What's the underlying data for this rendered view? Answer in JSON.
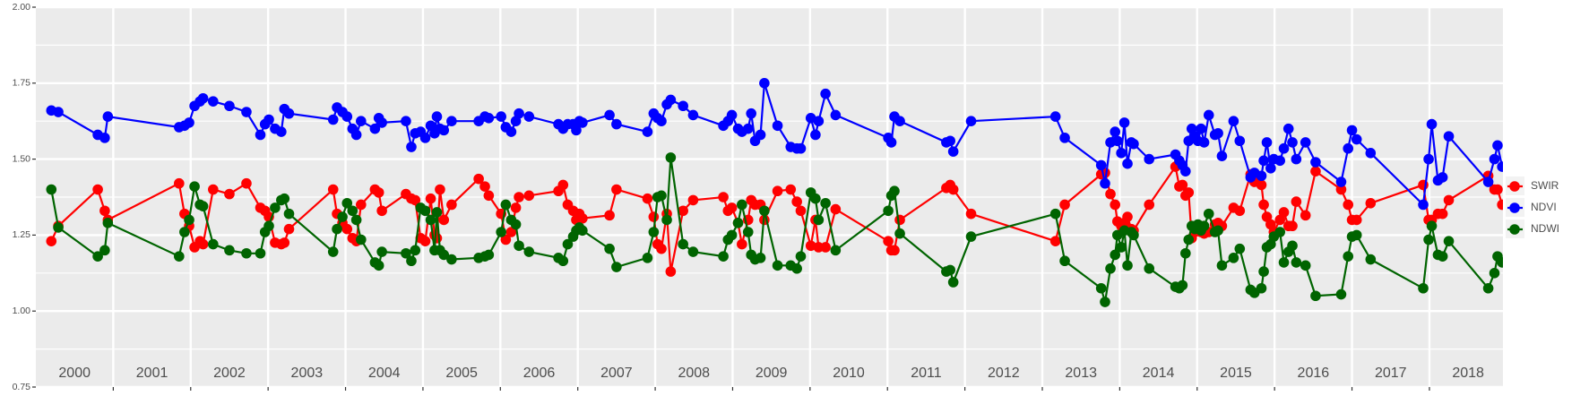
{
  "chart_data": {
    "type": "line",
    "x": [
      2000.2,
      2000.29,
      2000.8,
      2000.89,
      2000.93,
      2001.85,
      2001.92,
      2001.98,
      2002.05,
      2002.12,
      2002.16,
      2002.29,
      2002.5,
      2002.72,
      2002.9,
      2002.96,
      2003.01,
      2003.09,
      2003.17,
      2003.21,
      2003.27,
      2003.84,
      2003.89,
      2003.96,
      2004.02,
      2004.09,
      2004.14,
      2004.2,
      2004.38,
      2004.43,
      2004.47,
      2004.78,
      2004.85,
      2004.9,
      2004.97,
      2005.03,
      2005.1,
      2005.15,
      2005.18,
      2005.22,
      2005.27,
      2005.37,
      2005.72,
      2005.8,
      2005.85,
      2006.01,
      2006.07,
      2006.14,
      2006.2,
      2006.24,
      2006.37,
      2006.75,
      2006.81,
      2006.87,
      2006.94,
      2006.98,
      2007.02,
      2007.06,
      2007.41,
      2007.5,
      2007.9,
      2007.98,
      2008.03,
      2008.08,
      2008.15,
      2008.2,
      2008.36,
      2008.49,
      2008.88,
      2008.94,
      2008.99,
      2009.07,
      2009.12,
      2009.2,
      2009.24,
      2009.29,
      2009.36,
      2009.41,
      2009.58,
      2009.75,
      2009.83,
      2009.88,
      2010.01,
      2010.07,
      2010.11,
      2010.2,
      2010.33,
      2011.01,
      2011.05,
      2011.09,
      2011.16,
      2011.76,
      2011.81,
      2011.85,
      2012.08,
      2013.17,
      2013.29,
      2013.76,
      2013.81,
      2013.88,
      2013.94,
      2013.97,
      2014.02,
      2014.06,
      2014.1,
      2014.15,
      2014.18,
      2014.38,
      2014.72,
      2014.77,
      2014.81,
      2014.85,
      2014.89,
      2014.93,
      2014.97,
      2015.01,
      2015.05,
      2015.09,
      2015.15,
      2015.23,
      2015.27,
      2015.32,
      2015.47,
      2015.55,
      2015.69,
      2015.74,
      2015.83,
      2015.86,
      2015.9,
      2015.95,
      2015.99,
      2016.07,
      2016.12,
      2016.18,
      2016.23,
      2016.28,
      2016.4,
      2016.53,
      2016.86,
      2016.95,
      2017.0,
      2017.06,
      2017.24,
      2017.92,
      2017.99,
      2018.03,
      2018.11,
      2018.17,
      2018.25,
      2018.76,
      2018.84,
      2018.88,
      2018.94
    ],
    "series": [
      {
        "name": "SWIR",
        "color": "#ff0000",
        "values": [
          1.23,
          1.28,
          1.4,
          1.33,
          1.3,
          1.42,
          1.32,
          1.28,
          1.21,
          1.23,
          1.22,
          1.4,
          1.385,
          1.42,
          1.34,
          1.33,
          1.31,
          1.225,
          1.22,
          1.225,
          1.27,
          1.4,
          1.32,
          1.29,
          1.27,
          1.24,
          1.23,
          1.35,
          1.4,
          1.39,
          1.33,
          1.385,
          1.37,
          1.365,
          1.24,
          1.23,
          1.37,
          1.25,
          1.24,
          1.4,
          1.3,
          1.35,
          1.435,
          1.41,
          1.38,
          1.32,
          1.235,
          1.26,
          1.34,
          1.375,
          1.38,
          1.395,
          1.415,
          1.35,
          1.33,
          1.3,
          1.32,
          1.305,
          1.315,
          1.4,
          1.37,
          1.31,
          1.22,
          1.205,
          1.32,
          1.13,
          1.33,
          1.365,
          1.375,
          1.33,
          1.34,
          1.29,
          1.22,
          1.3,
          1.365,
          1.35,
          1.35,
          1.3,
          1.395,
          1.4,
          1.36,
          1.33,
          1.215,
          1.3,
          1.21,
          1.21,
          1.335,
          1.23,
          1.2,
          1.2,
          1.3,
          1.405,
          1.415,
          1.4,
          1.32,
          1.23,
          1.35,
          1.45,
          1.455,
          1.385,
          1.35,
          1.295,
          1.28,
          1.29,
          1.31,
          1.27,
          1.265,
          1.35,
          1.475,
          1.41,
          1.415,
          1.38,
          1.39,
          1.24,
          1.26,
          1.27,
          1.26,
          1.255,
          1.26,
          1.285,
          1.29,
          1.28,
          1.34,
          1.33,
          1.45,
          1.425,
          1.415,
          1.35,
          1.31,
          1.285,
          1.26,
          1.3,
          1.325,
          1.28,
          1.28,
          1.36,
          1.315,
          1.46,
          1.4,
          1.35,
          1.3,
          1.3,
          1.355,
          1.415,
          1.3,
          1.3,
          1.32,
          1.32,
          1.365,
          1.445,
          1.4,
          1.4,
          1.35
        ]
      },
      {
        "name": "NDVI",
        "color": "#0000ff",
        "values": [
          1.66,
          1.655,
          1.58,
          1.57,
          1.64,
          1.605,
          1.61,
          1.62,
          1.675,
          1.69,
          1.7,
          1.69,
          1.675,
          1.655,
          1.58,
          1.615,
          1.63,
          1.6,
          1.59,
          1.665,
          1.65,
          1.63,
          1.67,
          1.655,
          1.64,
          1.6,
          1.58,
          1.625,
          1.6,
          1.635,
          1.62,
          1.625,
          1.54,
          1.585,
          1.59,
          1.57,
          1.61,
          1.585,
          1.64,
          1.6,
          1.595,
          1.625,
          1.625,
          1.64,
          1.635,
          1.64,
          1.605,
          1.59,
          1.625,
          1.65,
          1.64,
          1.615,
          1.6,
          1.615,
          1.615,
          1.595,
          1.625,
          1.62,
          1.645,
          1.615,
          1.59,
          1.65,
          1.635,
          1.625,
          1.68,
          1.695,
          1.675,
          1.645,
          1.61,
          1.625,
          1.645,
          1.6,
          1.59,
          1.6,
          1.65,
          1.56,
          1.58,
          1.75,
          1.61,
          1.54,
          1.535,
          1.535,
          1.635,
          1.58,
          1.625,
          1.715,
          1.645,
          1.57,
          1.555,
          1.64,
          1.625,
          1.555,
          1.56,
          1.525,
          1.625,
          1.64,
          1.57,
          1.48,
          1.42,
          1.555,
          1.59,
          1.56,
          1.52,
          1.62,
          1.485,
          1.555,
          1.55,
          1.5,
          1.515,
          1.495,
          1.48,
          1.46,
          1.56,
          1.6,
          1.575,
          1.56,
          1.6,
          1.555,
          1.645,
          1.58,
          1.585,
          1.51,
          1.625,
          1.56,
          1.44,
          1.455,
          1.445,
          1.495,
          1.555,
          1.47,
          1.5,
          1.495,
          1.535,
          1.6,
          1.555,
          1.5,
          1.555,
          1.49,
          1.425,
          1.535,
          1.595,
          1.565,
          1.52,
          1.35,
          1.5,
          1.615,
          1.43,
          1.44,
          1.575,
          1.425,
          1.5,
          1.545,
          1.475
        ]
      },
      {
        "name": "NDWI",
        "color": "#006400",
        "values": [
          1.4,
          1.275,
          1.18,
          1.2,
          1.29,
          1.18,
          1.26,
          1.3,
          1.41,
          1.35,
          1.345,
          1.22,
          1.2,
          1.19,
          1.19,
          1.26,
          1.28,
          1.34,
          1.365,
          1.37,
          1.32,
          1.195,
          1.27,
          1.31,
          1.355,
          1.33,
          1.3,
          1.235,
          1.16,
          1.15,
          1.195,
          1.19,
          1.165,
          1.2,
          1.34,
          1.33,
          1.3,
          1.2,
          1.325,
          1.2,
          1.185,
          1.17,
          1.175,
          1.18,
          1.185,
          1.26,
          1.35,
          1.3,
          1.285,
          1.215,
          1.195,
          1.175,
          1.165,
          1.22,
          1.245,
          1.265,
          1.275,
          1.265,
          1.205,
          1.145,
          1.175,
          1.26,
          1.375,
          1.38,
          1.3,
          1.505,
          1.22,
          1.195,
          1.18,
          1.235,
          1.25,
          1.29,
          1.35,
          1.26,
          1.185,
          1.17,
          1.175,
          1.33,
          1.15,
          1.15,
          1.14,
          1.18,
          1.39,
          1.37,
          1.3,
          1.355,
          1.2,
          1.33,
          1.38,
          1.395,
          1.255,
          1.13,
          1.135,
          1.095,
          1.245,
          1.32,
          1.165,
          1.075,
          1.03,
          1.14,
          1.185,
          1.25,
          1.21,
          1.265,
          1.15,
          1.26,
          1.25,
          1.14,
          1.08,
          1.075,
          1.085,
          1.19,
          1.235,
          1.28,
          1.27,
          1.285,
          1.265,
          1.28,
          1.32,
          1.26,
          1.265,
          1.15,
          1.175,
          1.205,
          1.07,
          1.06,
          1.075,
          1.13,
          1.21,
          1.22,
          1.245,
          1.26,
          1.16,
          1.195,
          1.215,
          1.16,
          1.15,
          1.05,
          1.055,
          1.18,
          1.245,
          1.25,
          1.17,
          1.075,
          1.235,
          1.28,
          1.185,
          1.18,
          1.23,
          1.075,
          1.125,
          1.18,
          1.16
        ]
      }
    ],
    "xlim": [
      2000,
      2018.95
    ],
    "xticks": [
      {
        "value": 2000.5,
        "label": "2000"
      },
      {
        "value": 2001.5,
        "label": "2001"
      },
      {
        "value": 2002.5,
        "label": "2002"
      },
      {
        "value": 2003.5,
        "label": "2003"
      },
      {
        "value": 2004.5,
        "label": "2004"
      },
      {
        "value": 2005.5,
        "label": "2005"
      },
      {
        "value": 2006.5,
        "label": "2006"
      },
      {
        "value": 2007.5,
        "label": "2007"
      },
      {
        "value": 2008.5,
        "label": "2008"
      },
      {
        "value": 2009.5,
        "label": "2009"
      },
      {
        "value": 2010.5,
        "label": "2010"
      },
      {
        "value": 2011.5,
        "label": "2011"
      },
      {
        "value": 2012.5,
        "label": "2012"
      },
      {
        "value": 2013.5,
        "label": "2013"
      },
      {
        "value": 2014.5,
        "label": "2014"
      },
      {
        "value": 2015.5,
        "label": "2015"
      },
      {
        "value": 2016.5,
        "label": "2016"
      },
      {
        "value": 2017.5,
        "label": "2017"
      },
      {
        "value": 2018.5,
        "label": "2018"
      }
    ],
    "xgrid": [
      2001,
      2002,
      2003,
      2004,
      2005,
      2006,
      2007,
      2008,
      2009,
      2010,
      2011,
      2012,
      2013,
      2014,
      2015,
      2016,
      2017,
      2018
    ],
    "ylim": [
      0.75,
      2.0
    ],
    "yticks": [
      {
        "value": 0.75,
        "label": "0.75"
      },
      {
        "value": 1,
        "label": "1.00"
      },
      {
        "value": 1.25,
        "label": "1.25"
      },
      {
        "value": 1.5,
        "label": "1.50"
      },
      {
        "value": 1.75,
        "label": "1.75"
      },
      {
        "value": 2,
        "label": "2.00"
      }
    ],
    "yminor": [
      0.875,
      1.125,
      1.375,
      1.625,
      1.875
    ],
    "grid": true,
    "legend": "right"
  }
}
